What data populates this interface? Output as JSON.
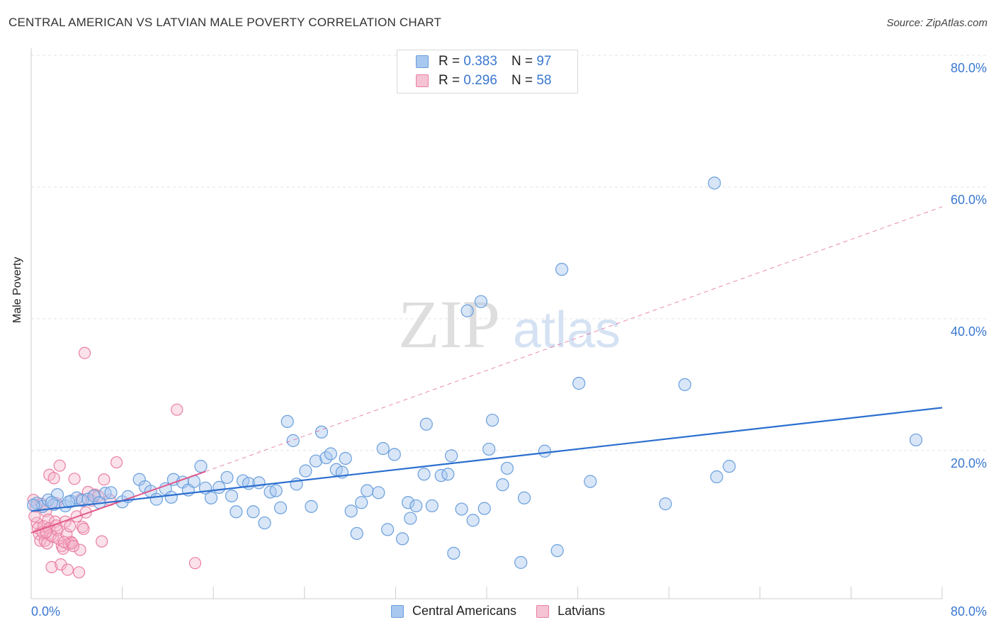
{
  "title": "CENTRAL AMERICAN VS LATVIAN MALE POVERTY CORRELATION CHART",
  "source": "Source: ZipAtlas.com",
  "watermark": {
    "zip": "ZIP",
    "atlas": "atlas"
  },
  "legend": {
    "rows": [
      {
        "r_label": "R =",
        "r_value": "0.383",
        "n_label": "N =",
        "n_value": "97"
      },
      {
        "r_label": "R =",
        "r_value": "0.296",
        "n_label": "N =",
        "n_value": "58"
      }
    ]
  },
  "bottom_legend": [
    "Central Americans",
    "Latvians"
  ],
  "colors": {
    "blue_fill": "#a9c8ef",
    "blue_stroke": "#6a9fdc",
    "blue_line": "#2b6fcf",
    "pink_fill": "#f5b3c8",
    "pink_stroke": "#ea7fa3",
    "pink_line": "#e0588a",
    "axis_text": "#3a78d0",
    "grid": "#e3e3e3"
  },
  "chart_data": {
    "type": "scatter",
    "title": "CENTRAL AMERICAN VS LATVIAN MALE POVERTY CORRELATION CHART",
    "xlabel": "",
    "ylabel": "Male Poverty",
    "xlim": [
      0,
      80
    ],
    "ylim": [
      -2.5,
      80
    ],
    "x_tick_labels": [
      "0.0%",
      "80.0%"
    ],
    "y_tick_labels": [
      "20.0%",
      "40.0%",
      "60.0%",
      "80.0%"
    ],
    "y_ticks": [
      20,
      40,
      60,
      80
    ],
    "x_minor_ticks": [
      8,
      16,
      24,
      32,
      40,
      48,
      56,
      64,
      72,
      80
    ],
    "series": [
      {
        "name": "Central Americans",
        "R": 0.383,
        "N": 97,
        "trend": {
          "x": [
            0,
            80
          ],
          "y": [
            10.8,
            26.5
          ],
          "style": "solid"
        },
        "points": [
          [
            0.5,
            12
          ],
          [
            1,
            11.5
          ],
          [
            1.5,
            12.5
          ],
          [
            2,
            11.8
          ],
          [
            2.3,
            13.3
          ],
          [
            3,
            11.6
          ],
          [
            3.5,
            12.3
          ],
          [
            4,
            12.8
          ],
          [
            4.5,
            12.4
          ],
          [
            5,
            12.6
          ],
          [
            5.5,
            13.1
          ],
          [
            6,
            12.1
          ],
          [
            6.5,
            13.5
          ],
          [
            7,
            13.6
          ],
          [
            8,
            12.2
          ],
          [
            8.5,
            13
          ],
          [
            9.5,
            15.6
          ],
          [
            10,
            14.5
          ],
          [
            10.5,
            13.8
          ],
          [
            11,
            12.6
          ],
          [
            11.8,
            14.2
          ],
          [
            12.3,
            12.9
          ],
          [
            12.5,
            15.6
          ],
          [
            13.3,
            15.2
          ],
          [
            13.8,
            14
          ],
          [
            14.3,
            15.3
          ],
          [
            14.9,
            17.6
          ],
          [
            15.3,
            14.3
          ],
          [
            15.8,
            12.8
          ],
          [
            16.5,
            14.4
          ],
          [
            17.2,
            15.9
          ],
          [
            17.6,
            13.1
          ],
          [
            18,
            10.7
          ],
          [
            18.6,
            15.4
          ],
          [
            19.1,
            15
          ],
          [
            19.5,
            10.7
          ],
          [
            20,
            15.1
          ],
          [
            20.5,
            9
          ],
          [
            21,
            13.7
          ],
          [
            21.5,
            13.9
          ],
          [
            21.9,
            11.3
          ],
          [
            22.5,
            24.4
          ],
          [
            23,
            21.5
          ],
          [
            23.3,
            14.9
          ],
          [
            24.1,
            16.9
          ],
          [
            24.6,
            11.5
          ],
          [
            25,
            18.4
          ],
          [
            25.5,
            22.8
          ],
          [
            25.9,
            18.9
          ],
          [
            26.3,
            19.5
          ],
          [
            26.8,
            17.1
          ],
          [
            27.3,
            16.7
          ],
          [
            27.6,
            18.8
          ],
          [
            28.1,
            10.8
          ],
          [
            28.6,
            7.4
          ],
          [
            29,
            12.1
          ],
          [
            29.5,
            13.9
          ],
          [
            30.5,
            13.6
          ],
          [
            30.9,
            20.3
          ],
          [
            31.3,
            8
          ],
          [
            31.9,
            19.4
          ],
          [
            32.6,
            6.6
          ],
          [
            33.1,
            12.1
          ],
          [
            33.3,
            9.7
          ],
          [
            33.8,
            11.6
          ],
          [
            34.5,
            16.4
          ],
          [
            34.7,
            24
          ],
          [
            35.2,
            11.6
          ],
          [
            36,
            16.2
          ],
          [
            36.6,
            16.4
          ],
          [
            36.9,
            19.2
          ],
          [
            37.1,
            4.4
          ],
          [
            37.8,
            11.1
          ],
          [
            38.3,
            41.2
          ],
          [
            38.8,
            9.4
          ],
          [
            39.5,
            42.6
          ],
          [
            39.8,
            11.2
          ],
          [
            40.2,
            20.2
          ],
          [
            40.5,
            24.6
          ],
          [
            41.4,
            14.8
          ],
          [
            41.8,
            17.3
          ],
          [
            43,
            3
          ],
          [
            43.3,
            12.8
          ],
          [
            45.1,
            19.9
          ],
          [
            46.2,
            4.8
          ],
          [
            46.6,
            47.5
          ],
          [
            48.1,
            30.2
          ],
          [
            49.1,
            15.3
          ],
          [
            55.7,
            11.9
          ],
          [
            57.4,
            30
          ],
          [
            60,
            60.6
          ],
          [
            60.2,
            16
          ],
          [
            61.3,
            17.6
          ],
          [
            77.7,
            21.6
          ],
          [
            0.2,
            11.7
          ],
          [
            1.8,
            12.1
          ],
          [
            3.3,
            12.2
          ]
        ]
      },
      {
        "name": "Latvians",
        "R": 0.296,
        "N": 58,
        "trend": {
          "x": [
            0,
            15.3
          ],
          "y": [
            7.5,
            16.8
          ],
          "style": "solid",
          "extension": {
            "x": [
              15.3,
              80
            ],
            "y": [
              16.8,
              57
            ],
            "style": "dashed"
          }
        },
        "points": [
          [
            0.2,
            12.5
          ],
          [
            0.4,
            11.5
          ],
          [
            0.5,
            9
          ],
          [
            0.6,
            8.2
          ],
          [
            0.7,
            7.3
          ],
          [
            0.8,
            6.3
          ],
          [
            0.9,
            11.9
          ],
          [
            1,
            7.6
          ],
          [
            1.1,
            8.5
          ],
          [
            1.2,
            6.3
          ],
          [
            1.3,
            10.8
          ],
          [
            1.4,
            5.9
          ],
          [
            1.5,
            9.5
          ],
          [
            1.6,
            8.2
          ],
          [
            1.7,
            7.1
          ],
          [
            1.6,
            16.3
          ],
          [
            1.8,
            2.3
          ],
          [
            1.9,
            6.9
          ],
          [
            2,
            15.8
          ],
          [
            2.1,
            9.2
          ],
          [
            2.2,
            8.6
          ],
          [
            2.3,
            7.9
          ],
          [
            2.4,
            6.6
          ],
          [
            2.5,
            17.7
          ],
          [
            2.6,
            2.7
          ],
          [
            2.7,
            5.5
          ],
          [
            2.8,
            5.1
          ],
          [
            3,
            9.2
          ],
          [
            3.1,
            7.3
          ],
          [
            3.2,
            1.9
          ],
          [
            3.3,
            5.8
          ],
          [
            3.4,
            8.5
          ],
          [
            3.5,
            6.1
          ],
          [
            3.6,
            5.9
          ],
          [
            3.8,
            15.7
          ],
          [
            4,
            10
          ],
          [
            4.2,
            1.5
          ],
          [
            4.3,
            4.9
          ],
          [
            4.4,
            12.6
          ],
          [
            4.5,
            8.4
          ],
          [
            4.7,
            34.8
          ],
          [
            4.8,
            10.6
          ],
          [
            5,
            13.7
          ],
          [
            5.3,
            12.4
          ],
          [
            5.6,
            13.3
          ],
          [
            5.9,
            13.1
          ],
          [
            6.2,
            6.2
          ],
          [
            6.4,
            15.6
          ],
          [
            6.9,
            12.5
          ],
          [
            7.5,
            18.2
          ],
          [
            12.8,
            26.2
          ],
          [
            14.4,
            2.9
          ],
          [
            2.9,
            6.1
          ],
          [
            3.7,
            5.5
          ],
          [
            1.3,
            7.6
          ],
          [
            0.3,
            10
          ],
          [
            2.2,
            12
          ],
          [
            4.6,
            8.1
          ]
        ]
      }
    ]
  }
}
